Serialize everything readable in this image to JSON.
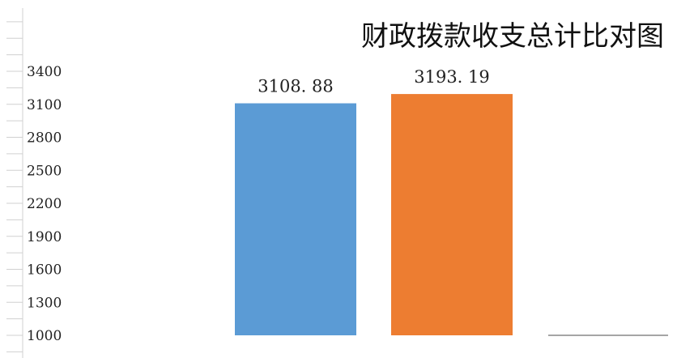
{
  "chart_data": {
    "type": "bar",
    "title": "财政拨款收支总计比对图",
    "xlabel": "",
    "ylabel": "",
    "categories": [
      "",
      "",
      ""
    ],
    "values": [
      3108.88,
      3193.19,
      null
    ],
    "value_labels": [
      "3108. 88",
      "3193. 19",
      ""
    ],
    "colors": [
      "#5b9bd5",
      "#ed7d31",
      "#a5a5a5"
    ],
    "ylim": [
      1000,
      3400
    ],
    "yticks": [
      1000,
      1300,
      1600,
      1900,
      2200,
      2500,
      2800,
      3100,
      3400
    ],
    "ytick_labels": [
      "1000",
      "1300",
      "1600",
      "1900",
      "2200",
      "2500",
      "2800",
      "3100",
      "3400"
    ],
    "grid": false,
    "legend": "none"
  }
}
